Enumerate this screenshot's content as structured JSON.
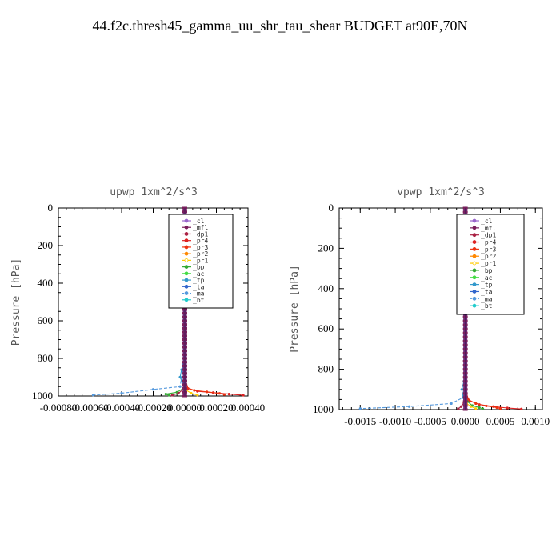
{
  "title": "44.f2c.thresh45_gamma_uu_shr_tau_shear  BUDGET at90E,70N",
  "legend_entries": [
    {
      "name": "_cl",
      "color": "#9966cc",
      "marker": "dot"
    },
    {
      "name": "_mfl",
      "color": "#7a1f5c",
      "marker": "dot"
    },
    {
      "name": "_dp1",
      "color": "#aa2244",
      "marker": "dot"
    },
    {
      "name": "_pr4",
      "color": "#dd2222",
      "marker": "dot"
    },
    {
      "name": "_pr3",
      "color": "#ee3311",
      "marker": "cross"
    },
    {
      "name": "_pr2",
      "color": "#ff8800",
      "marker": "tri"
    },
    {
      "name": "_pr1",
      "color": "#ffcc00",
      "marker": "circle"
    },
    {
      "name": "_bp",
      "color": "#33aa33",
      "marker": "cross"
    },
    {
      "name": "_ac",
      "color": "#44dd44",
      "marker": "dot"
    },
    {
      "name": "_tp",
      "color": "#3399cc",
      "marker": "cross"
    },
    {
      "name": "_ta",
      "color": "#3366cc",
      "marker": "dot"
    },
    {
      "name": "_ma",
      "color": "#5599dd",
      "marker": "dash"
    },
    {
      "name": "_bt",
      "color": "#22cccc",
      "marker": "dot"
    }
  ],
  "chart_data": [
    {
      "type": "line",
      "title": "upwp   1xm^2/s^3",
      "xlabel": "",
      "ylabel": "Pressure [hPa]",
      "xlim": [
        -0.0008,
        0.0004
      ],
      "ylim": [
        1000,
        0
      ],
      "x_ticks": [
        "-0.00080",
        "-0.00060",
        "-0.00040",
        "-0.00020",
        "0.00000",
        "0.00020",
        "0.00040"
      ],
      "y_ticks": [
        "0",
        "200",
        "400",
        "600",
        "800",
        "1000"
      ],
      "grid": false,
      "legend_position": "top-right",
      "series": [
        {
          "name": "_mfl",
          "x": [
            0,
            0,
            0,
            0,
            0,
            0,
            0
          ],
          "y": [
            0,
            200,
            400,
            600,
            800,
            950,
            1000
          ]
        },
        {
          "name": "_ma",
          "x": [
            0,
            0,
            -1e-05,
            -3e-05,
            -0.0002,
            -0.0004,
            -0.00058
          ],
          "y": [
            0,
            800,
            850,
            950,
            965,
            985,
            995
          ]
        },
        {
          "name": "_tp",
          "x": [
            0,
            -1e-05,
            -2e-05,
            -3e-05,
            -1e-05
          ],
          "y": [
            800,
            830,
            860,
            900,
            940
          ]
        },
        {
          "name": "_pr4",
          "x": [
            0,
            2e-05,
            8e-05,
            0.00018,
            0.00028,
            0.00037
          ],
          "y": [
            900,
            960,
            975,
            982,
            990,
            996
          ]
        },
        {
          "name": "_pr3",
          "x": [
            0,
            1e-05,
            6e-05,
            0.00014,
            0.00022,
            0.00025
          ],
          "y": [
            900,
            955,
            970,
            978,
            986,
            992
          ]
        },
        {
          "name": "_bp",
          "x": [
            0,
            -1e-05,
            -5e-05,
            -0.00012,
            -0.0001
          ],
          "y": [
            930,
            960,
            980,
            990,
            996
          ]
        },
        {
          "name": "_pr1",
          "x": [
            0,
            1e-05,
            4e-05,
            8e-05
          ],
          "y": [
            950,
            970,
            985,
            995
          ]
        },
        {
          "name": "_dp1",
          "x": [
            0,
            -1e-05,
            -4e-05,
            -8e-05
          ],
          "y": [
            940,
            965,
            985,
            996
          ]
        }
      ]
    },
    {
      "type": "line",
      "title": "vpwp   1xm^2/s^3",
      "xlabel": "",
      "ylabel": "Pressure [hPa]",
      "xlim": [
        -0.0018,
        0.0011
      ],
      "ylim": [
        1000,
        0
      ],
      "x_ticks": [
        "-0.0015",
        "-0.0010",
        "-0.0005",
        "0.0000",
        "0.0005",
        "0.0010"
      ],
      "y_ticks": [
        "0",
        "200",
        "400",
        "600",
        "800",
        "1000"
      ],
      "grid": false,
      "legend_position": "top-right",
      "series": [
        {
          "name": "_mfl",
          "x": [
            0,
            0,
            0,
            0,
            0,
            0,
            0
          ],
          "y": [
            0,
            200,
            400,
            600,
            800,
            950,
            1000
          ]
        },
        {
          "name": "_ma",
          "x": [
            0,
            0,
            -3e-05,
            -0.0002,
            -0.0008,
            -0.0015
          ],
          "y": [
            0,
            850,
            940,
            970,
            985,
            995
          ]
        },
        {
          "name": "_tp",
          "x": [
            0,
            -2e-05,
            -5e-05,
            -3e-05,
            -1e-05
          ],
          "y": [
            820,
            860,
            900,
            940,
            970
          ]
        },
        {
          "name": "_pr4",
          "x": [
            0,
            5e-05,
            0.0002,
            0.0004,
            0.0006,
            0.0008
          ],
          "y": [
            900,
            955,
            975,
            985,
            992,
            997
          ]
        },
        {
          "name": "_pr3",
          "x": [
            0,
            4e-05,
            0.00015,
            0.0003,
            0.00045,
            0.0005
          ],
          "y": [
            900,
            950,
            970,
            982,
            990,
            995
          ]
        },
        {
          "name": "_bp",
          "x": [
            0,
            3e-05,
            0.0001,
            0.0002,
            0.00025
          ],
          "y": [
            930,
            960,
            980,
            990,
            996
          ]
        },
        {
          "name": "_pr1",
          "x": [
            0,
            2e-05,
            8e-05,
            0.00015
          ],
          "y": [
            950,
            970,
            985,
            995
          ]
        },
        {
          "name": "_dp1",
          "x": [
            0,
            -2e-05,
            -6e-05,
            -0.0001
          ],
          "y": [
            940,
            965,
            985,
            996
          ]
        }
      ]
    }
  ]
}
